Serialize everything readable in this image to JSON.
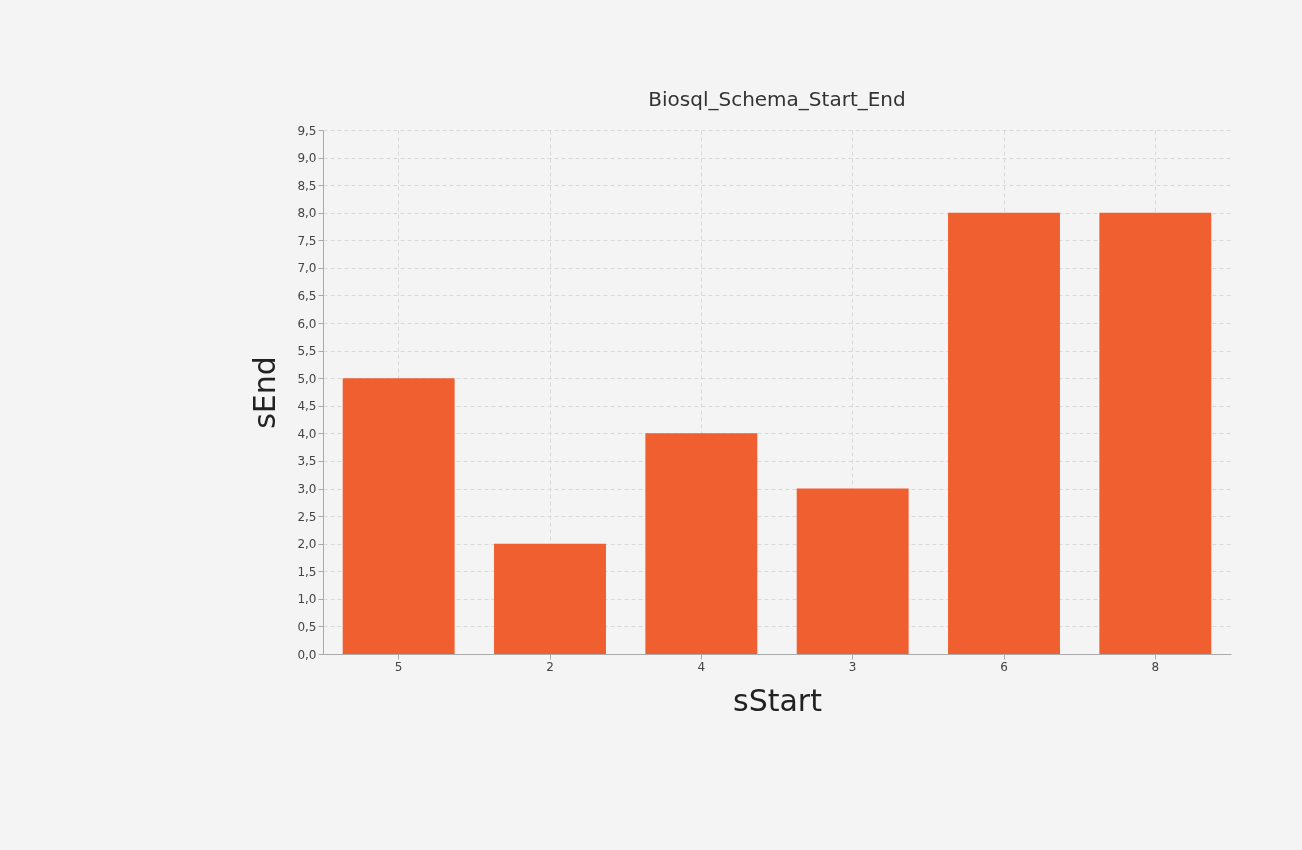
{
  "chart_data": {
    "type": "bar",
    "title": "Biosql_Schema_Start_End",
    "xlabel": "sStart",
    "ylabel": "sEnd",
    "categories": [
      "5",
      "2",
      "4",
      "3",
      "6",
      "8"
    ],
    "values": [
      5,
      2,
      4,
      3,
      8,
      8
    ],
    "color": "#f05f2f",
    "ylim": [
      0,
      9.5
    ],
    "yticks": [
      {
        "value": 0,
        "label": "0,0"
      },
      {
        "value": 0.5,
        "label": "0,5"
      },
      {
        "value": 1,
        "label": "1,0"
      },
      {
        "value": 1.5,
        "label": "1,5"
      },
      {
        "value": 2,
        "label": "2,0"
      },
      {
        "value": 2.5,
        "label": "2,5"
      },
      {
        "value": 3,
        "label": "3,0"
      },
      {
        "value": 3.5,
        "label": "3,5"
      },
      {
        "value": 4,
        "label": "4,0"
      },
      {
        "value": 4.5,
        "label": "4,5"
      },
      {
        "value": 5,
        "label": "5,0"
      },
      {
        "value": 5.5,
        "label": "5,5"
      },
      {
        "value": 6,
        "label": "6,0"
      },
      {
        "value": 6.5,
        "label": "6,5"
      },
      {
        "value": 7,
        "label": "7,0"
      },
      {
        "value": 7.5,
        "label": "7,5"
      },
      {
        "value": 8,
        "label": "8,0"
      },
      {
        "value": 8.5,
        "label": "8,5"
      },
      {
        "value": 9,
        "label": "9,0"
      },
      {
        "value": 9.5,
        "label": "9,5"
      }
    ],
    "grid": true,
    "line_style": "dashed"
  }
}
